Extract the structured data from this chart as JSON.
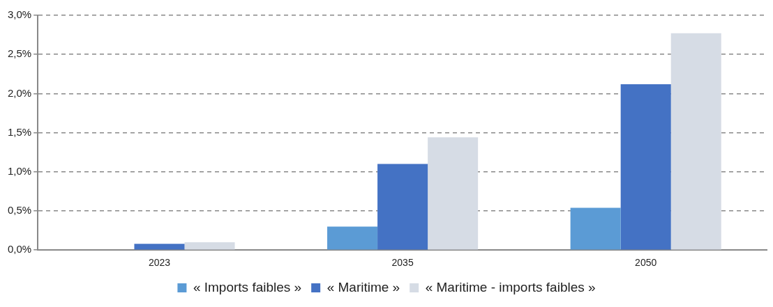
{
  "chart_data": {
    "type": "bar",
    "categories": [
      "2023",
      "2035",
      "2050"
    ],
    "series": [
      {
        "name": "« Imports faibles »",
        "color": "#5b9bd5",
        "values": [
          0,
          0.3,
          0.54
        ]
      },
      {
        "name": "« Maritime »",
        "color": "#4472c4",
        "values": [
          0.08,
          1.1,
          2.12
        ]
      },
      {
        "name": "« Maritime - imports faibles »",
        "color": "#d6dce5",
        "values": [
          0.1,
          1.44,
          2.77
        ]
      }
    ],
    "ylim": [
      0,
      3
    ],
    "yticks": [
      {
        "value": 0,
        "label": "0,0%"
      },
      {
        "value": 0.5,
        "label": "0,5%"
      },
      {
        "value": 1,
        "label": "1,0%"
      },
      {
        "value": 1.5,
        "label": "1,5%"
      },
      {
        "value": 2,
        "label": "2,0%"
      },
      {
        "value": 2.5,
        "label": "2,5%"
      },
      {
        "value": 3,
        "label": "3,0%"
      }
    ],
    "grid": "y",
    "legend": "bottom"
  }
}
